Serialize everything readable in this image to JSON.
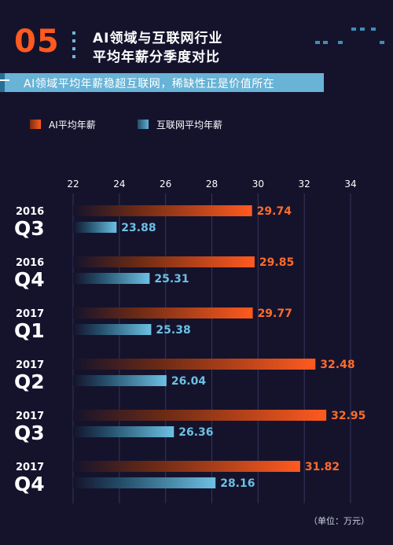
{
  "header": {
    "number": "05",
    "title_line1": "AI领域与互联网行业",
    "title_line2": "平均年薪分季度对比",
    "subtitle": "AI领域平均年薪稳超互联网，稀缺性正是价值所在"
  },
  "unit_label": "（单位：万元）",
  "colors": {
    "background": "#15132c",
    "ai": "#ff5a1f",
    "internet": "#5fb0d6",
    "accent": "#68b3d6"
  },
  "chart_data": {
    "type": "bar",
    "orientation": "horizontal",
    "x_ticks": [
      "22",
      "24",
      "26",
      "28",
      "30",
      "32",
      "34"
    ],
    "xlim": [
      22,
      34
    ],
    "grid": true,
    "legend_position": "top-left",
    "categories": [
      {
        "year": "2016",
        "quarter": "Q3"
      },
      {
        "year": "2016",
        "quarter": "Q4"
      },
      {
        "year": "2017",
        "quarter": "Q1"
      },
      {
        "year": "2017",
        "quarter": "Q2"
      },
      {
        "year": "2017",
        "quarter": "Q3"
      },
      {
        "year": "2017",
        "quarter": "Q4"
      }
    ],
    "series": [
      {
        "name": "AI平均年薪",
        "values": [
          29.74,
          29.85,
          29.77,
          32.48,
          32.95,
          31.82
        ],
        "labels": [
          "29.74",
          "29.85",
          "29.77",
          "32.48",
          "32.95",
          "31.82"
        ]
      },
      {
        "name": "互联网平均年薪",
        "values": [
          23.88,
          25.31,
          25.38,
          26.04,
          26.36,
          28.16
        ],
        "labels": [
          "23.88",
          "25.31",
          "25.38",
          "26.04",
          "26.36",
          "28.16"
        ]
      }
    ]
  }
}
